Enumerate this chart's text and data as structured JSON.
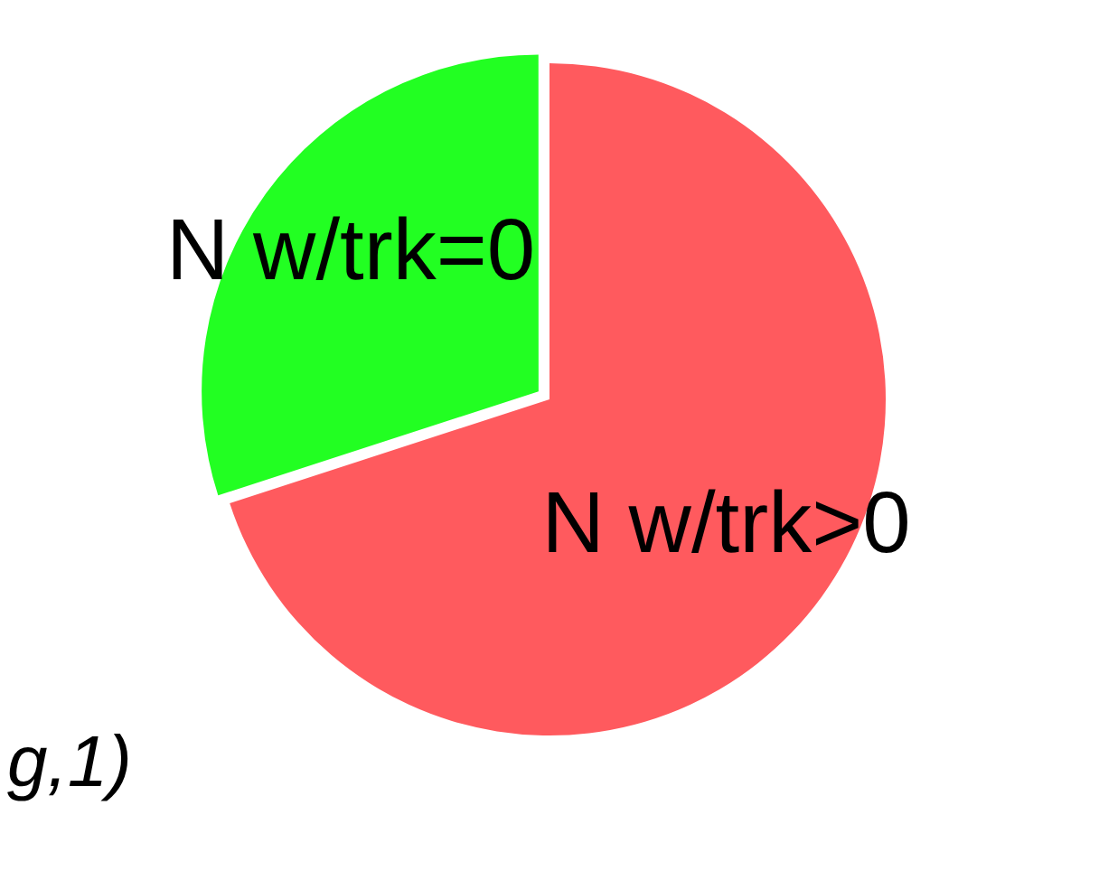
{
  "chart_data": {
    "type": "pie",
    "categories": [
      "N w/trk=0",
      "N w/trk>0"
    ],
    "values": [
      30,
      70
    ],
    "colors": [
      "#22ff22",
      "#ff5a5e"
    ],
    "annotations": [
      "g,1)"
    ]
  }
}
